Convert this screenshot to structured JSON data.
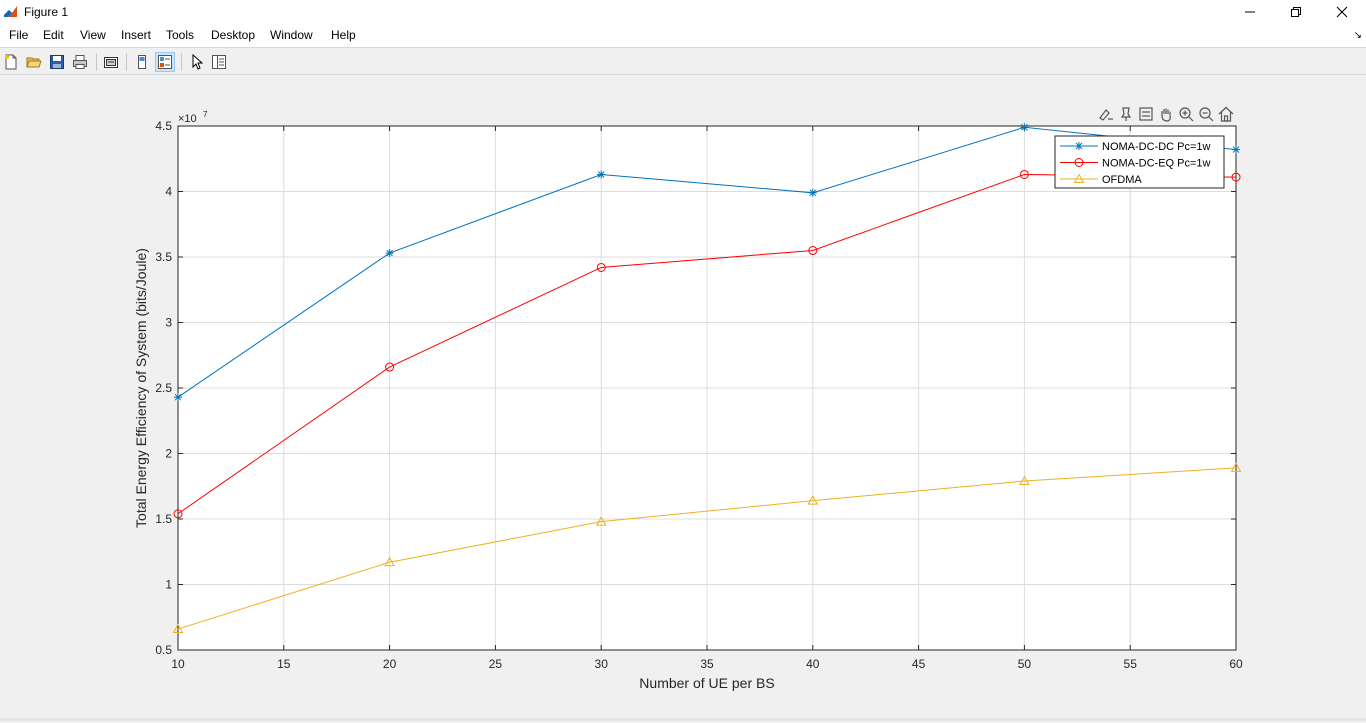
{
  "window": {
    "title": "Figure 1",
    "minimize_glyph": "—",
    "maximize_glyph": "❐",
    "close_glyph": "✕"
  },
  "menu": {
    "items": [
      "File",
      "Edit",
      "View",
      "Insert",
      "Tools",
      "Desktop",
      "Window",
      "Help"
    ],
    "overflow_glyph": "↘"
  },
  "toolbar": {
    "buttons": [
      "new-figure-icon",
      "open-file-icon",
      "save-icon",
      "print-icon",
      "link-plot-icon",
      "hide-plot-tools-icon",
      "show-plot-tools-icon",
      "edit-plot-pointer-icon",
      "property-inspector-icon"
    ],
    "active": "show-plot-tools-icon"
  },
  "axes_toolbar": {
    "buttons": [
      "brush-icon",
      "data-tips-icon",
      "legend-toggle-icon",
      "pan-icon",
      "zoom-in-icon",
      "zoom-out-icon",
      "restore-view-icon"
    ]
  },
  "chart_data": {
    "type": "line",
    "title": "",
    "xlabel": "Number of UE per BS",
    "ylabel": "Total Energy Efficiency of System (bits/Joule)",
    "exponent_label": "×10",
    "exponent_power": "7",
    "xlim": [
      10,
      60
    ],
    "ylim": [
      0.5,
      4.5
    ],
    "xticks": [
      "10",
      "15",
      "20",
      "25",
      "30",
      "35",
      "40",
      "45",
      "50",
      "55",
      "60"
    ],
    "yticks": [
      "0.5",
      "1",
      "1.5",
      "2",
      "2.5",
      "3",
      "3.5",
      "4",
      "4.5"
    ],
    "grid": true,
    "legend_position": "top-right",
    "x": [
      10,
      20,
      30,
      40,
      50,
      60
    ],
    "series": [
      {
        "name": "NOMA-DC-DC Pc=1w",
        "color": "#0072bd",
        "marker": "asterisk",
        "values": [
          2.43,
          3.53,
          4.13,
          3.99,
          4.49,
          4.32
        ]
      },
      {
        "name": "NOMA-DC-EQ Pc=1w",
        "color": "#ff0000",
        "marker": "circle",
        "values": [
          1.54,
          2.66,
          3.42,
          3.55,
          4.13,
          4.11
        ]
      },
      {
        "name": "OFDMA",
        "color": "#edb120",
        "marker": "triangle",
        "values": [
          0.66,
          1.17,
          1.48,
          1.64,
          1.79,
          1.89
        ]
      }
    ]
  }
}
